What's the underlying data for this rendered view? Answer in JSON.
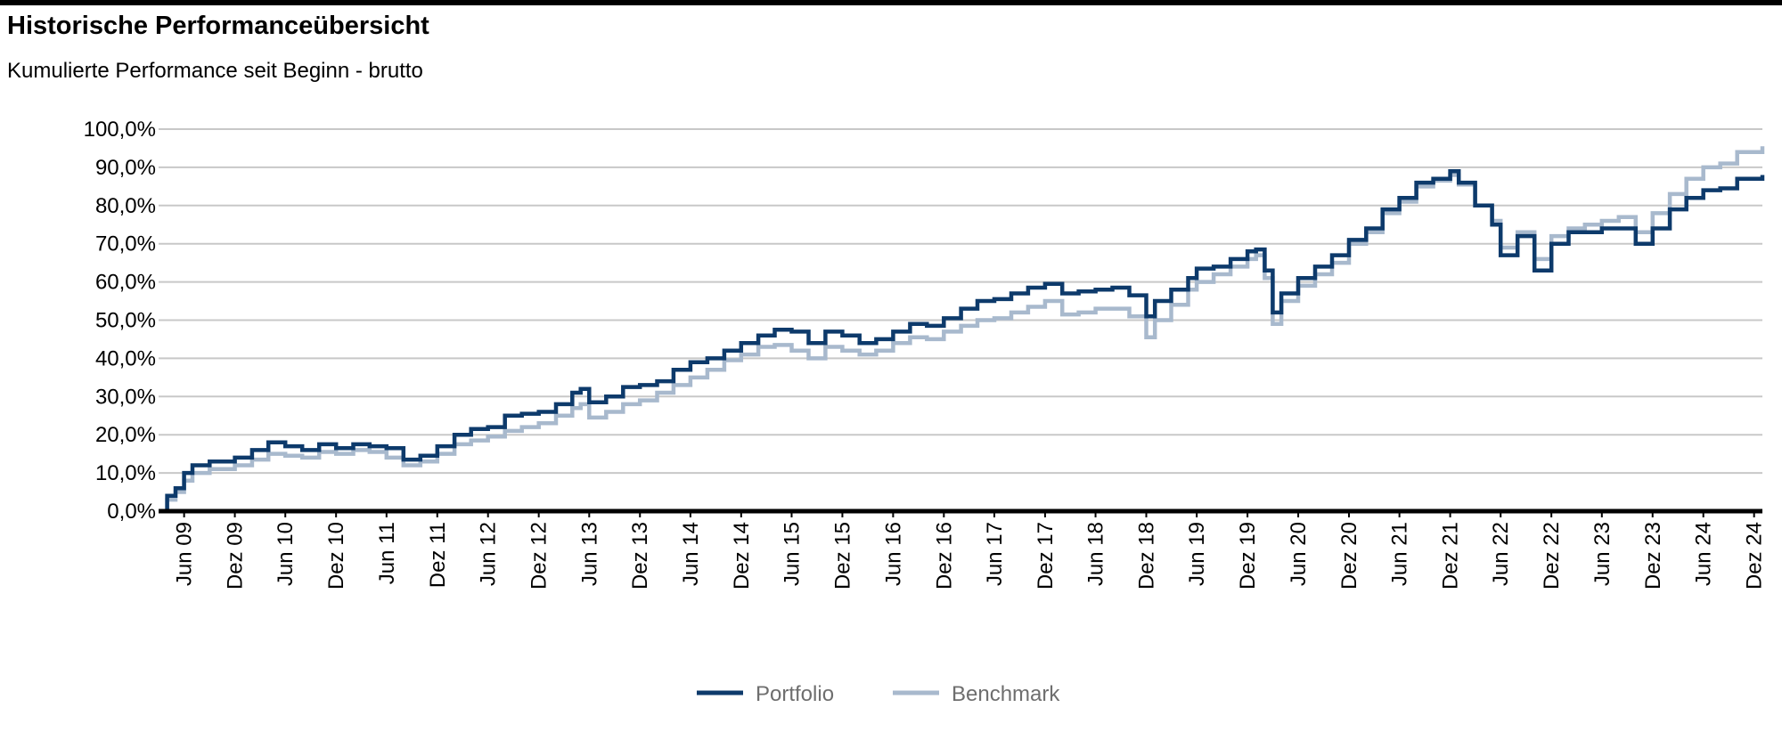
{
  "header": {
    "title": "Historische Performanceübersicht",
    "subtitle": "Kumulierte Performance seit Beginn - brutto"
  },
  "chart_data": {
    "type": "line",
    "ylim": [
      0,
      100
    ],
    "y_ticks": [
      "0,0%",
      "10,0%",
      "20,0%",
      "30,0%",
      "40,0%",
      "50,0%",
      "60,0%",
      "70,0%",
      "80,0%",
      "90,0%",
      "100,0%"
    ],
    "x_range": [
      "2009-03-01",
      "2024-12-31"
    ],
    "x_ticks": [
      {
        "label": "Jun 09",
        "date": "2009-06-01"
      },
      {
        "label": "Dez 09",
        "date": "2009-12-01"
      },
      {
        "label": "Jun 10",
        "date": "2010-06-01"
      },
      {
        "label": "Dez 10",
        "date": "2010-12-01"
      },
      {
        "label": "Jun 11",
        "date": "2011-06-01"
      },
      {
        "label": "Dez 11",
        "date": "2011-12-01"
      },
      {
        "label": "Jun 12",
        "date": "2012-06-01"
      },
      {
        "label": "Dez 12",
        "date": "2012-12-01"
      },
      {
        "label": "Jun 13",
        "date": "2013-06-01"
      },
      {
        "label": "Dez 13",
        "date": "2013-12-01"
      },
      {
        "label": "Jun 14",
        "date": "2014-06-01"
      },
      {
        "label": "Dez 14",
        "date": "2014-12-01"
      },
      {
        "label": "Jun 15",
        "date": "2015-06-01"
      },
      {
        "label": "Dez 15",
        "date": "2015-12-01"
      },
      {
        "label": "Jun 16",
        "date": "2016-06-01"
      },
      {
        "label": "Dez 16",
        "date": "2016-12-01"
      },
      {
        "label": "Jun 17",
        "date": "2017-06-01"
      },
      {
        "label": "Dez 17",
        "date": "2017-12-01"
      },
      {
        "label": "Jun 18",
        "date": "2018-06-01"
      },
      {
        "label": "Dez 18",
        "date": "2018-12-01"
      },
      {
        "label": "Jun 19",
        "date": "2019-06-01"
      },
      {
        "label": "Dez 19",
        "date": "2019-12-01"
      },
      {
        "label": "Jun 20",
        "date": "2020-06-01"
      },
      {
        "label": "Dez 20",
        "date": "2020-12-01"
      },
      {
        "label": "Jun 21",
        "date": "2021-06-01"
      },
      {
        "label": "Dez 21",
        "date": "2021-12-01"
      },
      {
        "label": "Jun 22",
        "date": "2022-06-01"
      },
      {
        "label": "Dez 22",
        "date": "2022-12-01"
      },
      {
        "label": "Jun 23",
        "date": "2023-06-01"
      },
      {
        "label": "Dez 23",
        "date": "2023-12-01"
      },
      {
        "label": "Jun 24",
        "date": "2024-06-01"
      },
      {
        "label": "Dez 24",
        "date": "2024-12-01"
      }
    ],
    "grid": true,
    "legend_position": "bottom-center",
    "series": [
      {
        "name": "Portfolio",
        "color": "#0d3a6b",
        "points": [
          [
            "2009-03-01",
            0
          ],
          [
            "2009-04-01",
            4
          ],
          [
            "2009-05-01",
            6
          ],
          [
            "2009-06-01",
            10
          ],
          [
            "2009-07-01",
            12
          ],
          [
            "2009-09-01",
            13
          ],
          [
            "2009-12-01",
            14
          ],
          [
            "2010-02-01",
            16
          ],
          [
            "2010-04-01",
            18
          ],
          [
            "2010-06-01",
            17
          ],
          [
            "2010-08-01",
            16
          ],
          [
            "2010-10-01",
            17.5
          ],
          [
            "2010-12-01",
            16.5
          ],
          [
            "2011-02-01",
            17.5
          ],
          [
            "2011-04-01",
            17
          ],
          [
            "2011-06-01",
            16.5
          ],
          [
            "2011-08-01",
            13.5
          ],
          [
            "2011-10-01",
            14.5
          ],
          [
            "2011-12-01",
            17
          ],
          [
            "2012-02-01",
            20
          ],
          [
            "2012-04-01",
            21.5
          ],
          [
            "2012-06-01",
            22
          ],
          [
            "2012-08-01",
            25
          ],
          [
            "2012-10-01",
            25.5
          ],
          [
            "2012-12-01",
            26
          ],
          [
            "2013-02-01",
            28
          ],
          [
            "2013-04-01",
            31
          ],
          [
            "2013-05-01",
            32
          ],
          [
            "2013-06-01",
            28.5
          ],
          [
            "2013-08-01",
            30
          ],
          [
            "2013-10-01",
            32.5
          ],
          [
            "2013-12-01",
            33
          ],
          [
            "2014-02-01",
            34
          ],
          [
            "2014-04-01",
            37
          ],
          [
            "2014-06-01",
            39
          ],
          [
            "2014-08-01",
            40
          ],
          [
            "2014-10-01",
            42
          ],
          [
            "2014-12-01",
            44
          ],
          [
            "2015-02-01",
            46
          ],
          [
            "2015-04-01",
            47.5
          ],
          [
            "2015-06-01",
            47
          ],
          [
            "2015-08-01",
            44
          ],
          [
            "2015-10-01",
            47
          ],
          [
            "2015-12-01",
            46
          ],
          [
            "2016-02-01",
            44
          ],
          [
            "2016-04-01",
            45
          ],
          [
            "2016-06-01",
            47
          ],
          [
            "2016-08-01",
            49
          ],
          [
            "2016-10-01",
            48.5
          ],
          [
            "2016-12-01",
            50.5
          ],
          [
            "2017-02-01",
            53
          ],
          [
            "2017-04-01",
            55
          ],
          [
            "2017-06-01",
            55.5
          ],
          [
            "2017-08-01",
            57
          ],
          [
            "2017-10-01",
            58.5
          ],
          [
            "2017-12-01",
            59.5
          ],
          [
            "2018-02-01",
            57
          ],
          [
            "2018-04-01",
            57.5
          ],
          [
            "2018-06-01",
            58
          ],
          [
            "2018-08-01",
            58.5
          ],
          [
            "2018-10-01",
            56.5
          ],
          [
            "2018-12-01",
            51
          ],
          [
            "2019-01-01",
            55
          ],
          [
            "2019-03-01",
            58
          ],
          [
            "2019-05-01",
            61
          ],
          [
            "2019-06-01",
            63.5
          ],
          [
            "2019-08-01",
            64
          ],
          [
            "2019-10-01",
            66
          ],
          [
            "2019-12-01",
            68
          ],
          [
            "2020-01-01",
            68.5
          ],
          [
            "2020-02-01",
            63
          ],
          [
            "2020-03-01",
            52
          ],
          [
            "2020-04-01",
            57
          ],
          [
            "2020-06-01",
            61
          ],
          [
            "2020-08-01",
            64
          ],
          [
            "2020-10-01",
            67
          ],
          [
            "2020-12-01",
            71
          ],
          [
            "2021-02-01",
            74
          ],
          [
            "2021-04-01",
            79
          ],
          [
            "2021-06-01",
            82
          ],
          [
            "2021-08-01",
            86
          ],
          [
            "2021-10-01",
            87
          ],
          [
            "2021-12-01",
            89
          ],
          [
            "2022-01-01",
            86
          ],
          [
            "2022-03-01",
            80
          ],
          [
            "2022-05-01",
            75
          ],
          [
            "2022-06-01",
            67
          ],
          [
            "2022-08-01",
            72
          ],
          [
            "2022-10-01",
            63
          ],
          [
            "2022-12-01",
            70
          ],
          [
            "2023-02-01",
            73
          ],
          [
            "2023-04-01",
            73
          ],
          [
            "2023-06-01",
            74
          ],
          [
            "2023-08-01",
            74
          ],
          [
            "2023-10-01",
            70
          ],
          [
            "2023-12-01",
            74
          ],
          [
            "2024-02-01",
            79
          ],
          [
            "2024-04-01",
            82
          ],
          [
            "2024-06-01",
            84
          ],
          [
            "2024-08-01",
            84.5
          ],
          [
            "2024-10-01",
            87
          ],
          [
            "2024-12-31",
            88
          ]
        ]
      },
      {
        "name": "Benchmark",
        "color": "#a8b9cd",
        "points": [
          [
            "2009-03-01",
            0
          ],
          [
            "2009-04-01",
            3
          ],
          [
            "2009-05-01",
            5
          ],
          [
            "2009-06-01",
            8
          ],
          [
            "2009-07-01",
            10
          ],
          [
            "2009-09-01",
            11
          ],
          [
            "2009-12-01",
            12
          ],
          [
            "2010-02-01",
            13.5
          ],
          [
            "2010-04-01",
            15
          ],
          [
            "2010-06-01",
            14.5
          ],
          [
            "2010-08-01",
            14
          ],
          [
            "2010-10-01",
            15.5
          ],
          [
            "2010-12-01",
            15
          ],
          [
            "2011-02-01",
            16
          ],
          [
            "2011-04-01",
            15.5
          ],
          [
            "2011-06-01",
            14
          ],
          [
            "2011-08-01",
            12
          ],
          [
            "2011-10-01",
            13
          ],
          [
            "2011-12-01",
            15
          ],
          [
            "2012-02-01",
            17.5
          ],
          [
            "2012-04-01",
            18.5
          ],
          [
            "2012-06-01",
            19.5
          ],
          [
            "2012-08-01",
            21
          ],
          [
            "2012-10-01",
            22
          ],
          [
            "2012-12-01",
            23
          ],
          [
            "2013-02-01",
            25
          ],
          [
            "2013-04-01",
            27
          ],
          [
            "2013-05-01",
            28
          ],
          [
            "2013-06-01",
            24.5
          ],
          [
            "2013-08-01",
            26
          ],
          [
            "2013-10-01",
            28
          ],
          [
            "2013-12-01",
            29
          ],
          [
            "2014-02-01",
            31
          ],
          [
            "2014-04-01",
            33
          ],
          [
            "2014-06-01",
            35
          ],
          [
            "2014-08-01",
            37
          ],
          [
            "2014-10-01",
            39.5
          ],
          [
            "2014-12-01",
            41
          ],
          [
            "2015-02-01",
            43
          ],
          [
            "2015-04-01",
            43.5
          ],
          [
            "2015-06-01",
            42
          ],
          [
            "2015-08-01",
            40
          ],
          [
            "2015-10-01",
            43
          ],
          [
            "2015-12-01",
            42
          ],
          [
            "2016-02-01",
            41
          ],
          [
            "2016-04-01",
            42
          ],
          [
            "2016-06-01",
            44
          ],
          [
            "2016-08-01",
            45.5
          ],
          [
            "2016-10-01",
            45
          ],
          [
            "2016-12-01",
            47
          ],
          [
            "2017-02-01",
            48.5
          ],
          [
            "2017-04-01",
            50
          ],
          [
            "2017-06-01",
            50.5
          ],
          [
            "2017-08-01",
            52
          ],
          [
            "2017-10-01",
            53.5
          ],
          [
            "2017-12-01",
            55
          ],
          [
            "2018-02-01",
            51.5
          ],
          [
            "2018-04-01",
            52
          ],
          [
            "2018-06-01",
            53
          ],
          [
            "2018-08-01",
            53
          ],
          [
            "2018-10-01",
            51
          ],
          [
            "2018-12-01",
            45.5
          ],
          [
            "2019-01-01",
            50
          ],
          [
            "2019-03-01",
            54
          ],
          [
            "2019-05-01",
            58
          ],
          [
            "2019-06-01",
            60
          ],
          [
            "2019-08-01",
            62
          ],
          [
            "2019-10-01",
            64
          ],
          [
            "2019-12-01",
            66
          ],
          [
            "2020-01-01",
            67
          ],
          [
            "2020-02-01",
            61
          ],
          [
            "2020-03-01",
            49
          ],
          [
            "2020-04-01",
            55
          ],
          [
            "2020-06-01",
            59
          ],
          [
            "2020-08-01",
            62
          ],
          [
            "2020-10-01",
            65
          ],
          [
            "2020-12-01",
            70
          ],
          [
            "2021-02-01",
            73
          ],
          [
            "2021-04-01",
            78
          ],
          [
            "2021-06-01",
            81
          ],
          [
            "2021-08-01",
            85
          ],
          [
            "2021-10-01",
            86.5
          ],
          [
            "2021-12-01",
            88
          ],
          [
            "2022-01-01",
            85.5
          ],
          [
            "2022-03-01",
            80
          ],
          [
            "2022-05-01",
            76
          ],
          [
            "2022-06-01",
            69
          ],
          [
            "2022-08-01",
            73
          ],
          [
            "2022-10-01",
            66
          ],
          [
            "2022-12-01",
            72
          ],
          [
            "2023-02-01",
            74
          ],
          [
            "2023-04-01",
            75
          ],
          [
            "2023-06-01",
            76
          ],
          [
            "2023-08-01",
            77
          ],
          [
            "2023-10-01",
            73
          ],
          [
            "2023-12-01",
            78
          ],
          [
            "2024-02-01",
            83
          ],
          [
            "2024-04-01",
            87
          ],
          [
            "2024-06-01",
            90
          ],
          [
            "2024-08-01",
            91
          ],
          [
            "2024-10-01",
            94
          ],
          [
            "2024-12-31",
            95.5
          ]
        ]
      }
    ]
  }
}
